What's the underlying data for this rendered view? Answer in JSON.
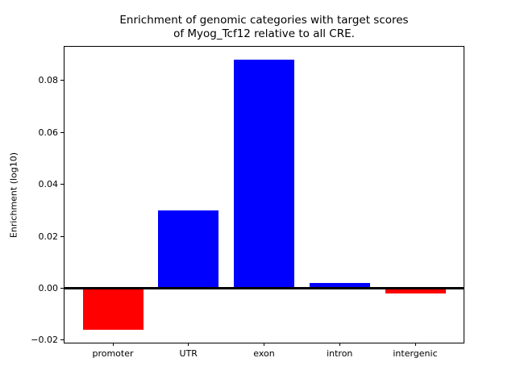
{
  "figure": {
    "title_line1": "Enrichment of genomic categories with target scores",
    "title_line2": "of Myog_Tcf12 relative to all CRE.",
    "ylabel": "Enrichment (log10)"
  },
  "chart_data": {
    "type": "bar",
    "title": "Enrichment of genomic categories with target scores\nof Myog_Tcf12 relative to all CRE.",
    "categories": [
      "promoter",
      "UTR",
      "exon",
      "intron",
      "intergenic"
    ],
    "values": [
      -0.016,
      0.03,
      0.088,
      0.002,
      -0.002
    ],
    "xlabel": "",
    "ylabel": "Enrichment (log10)",
    "ylim": [
      -0.021,
      0.093
    ],
    "xlim": [
      -0.64,
      4.64
    ],
    "yticks": [
      -0.02,
      0.0,
      0.02,
      0.04,
      0.06,
      0.08
    ],
    "grid": false,
    "legend": null,
    "bar_width_fraction": 0.8,
    "positive_color": "#0000ff",
    "negative_color": "#ff0000",
    "zero_line_color": "#000000",
    "zero_line_width": 3
  }
}
